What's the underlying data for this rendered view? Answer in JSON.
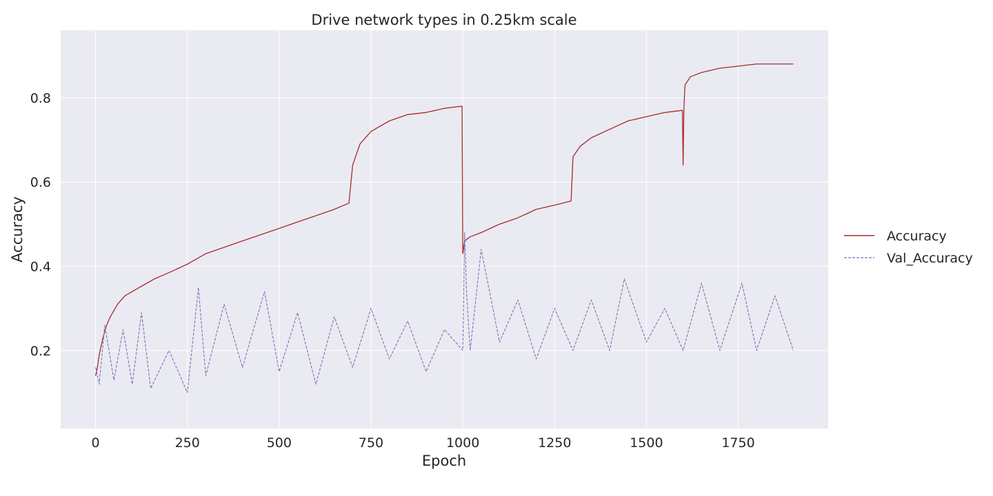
{
  "chart_data": {
    "type": "line",
    "title": "Drive network types in 0.25km scale",
    "xlabel": "Epoch",
    "ylabel": "Accuracy",
    "xlim": [
      -95,
      1995
    ],
    "ylim": [
      0.015,
      0.96
    ],
    "xticks": [
      0,
      250,
      500,
      750,
      1000,
      1250,
      1500,
      1750
    ],
    "yticks": [
      0.2,
      0.4,
      0.6,
      0.8
    ],
    "grid": true,
    "legend_position": "outside-right",
    "background": "#eaeaf2",
    "series": [
      {
        "name": "Accuracy",
        "color": "#a52a2a",
        "style": "solid",
        "x": [
          0,
          5,
          10,
          20,
          30,
          40,
          60,
          80,
          100,
          130,
          160,
          200,
          250,
          300,
          350,
          400,
          450,
          500,
          550,
          600,
          650,
          690,
          700,
          720,
          750,
          800,
          850,
          900,
          950,
          998,
          1000,
          1005,
          1020,
          1050,
          1100,
          1150,
          1200,
          1250,
          1295,
          1300,
          1320,
          1350,
          1400,
          1450,
          1500,
          1550,
          1598,
          1600,
          1602,
          1605,
          1620,
          1650,
          1700,
          1750,
          1800,
          1850,
          1900
        ],
        "y": [
          0.14,
          0.16,
          0.19,
          0.23,
          0.26,
          0.28,
          0.31,
          0.33,
          0.34,
          0.355,
          0.37,
          0.385,
          0.405,
          0.43,
          0.445,
          0.46,
          0.475,
          0.49,
          0.505,
          0.52,
          0.535,
          0.55,
          0.64,
          0.69,
          0.72,
          0.745,
          0.76,
          0.765,
          0.775,
          0.78,
          0.43,
          0.46,
          0.47,
          0.48,
          0.5,
          0.515,
          0.535,
          0.545,
          0.555,
          0.66,
          0.685,
          0.705,
          0.725,
          0.745,
          0.755,
          0.765,
          0.77,
          0.64,
          0.77,
          0.83,
          0.85,
          0.86,
          0.87,
          0.875,
          0.88,
          0.88,
          0.88
        ]
      },
      {
        "name": "Val_Accuracy",
        "color": "#7b71b5",
        "style": "dashed",
        "x": [
          0,
          10,
          25,
          50,
          75,
          100,
          125,
          150,
          200,
          250,
          280,
          300,
          350,
          400,
          460,
          500,
          550,
          600,
          650,
          700,
          750,
          800,
          850,
          900,
          950,
          1000,
          1005,
          1010,
          1020,
          1050,
          1100,
          1150,
          1200,
          1250,
          1300,
          1350,
          1400,
          1440,
          1500,
          1550,
          1600,
          1650,
          1700,
          1760,
          1800,
          1850,
          1900
        ],
        "y": [
          0.16,
          0.12,
          0.26,
          0.13,
          0.25,
          0.12,
          0.29,
          0.11,
          0.2,
          0.1,
          0.35,
          0.14,
          0.31,
          0.16,
          0.34,
          0.15,
          0.29,
          0.12,
          0.28,
          0.16,
          0.3,
          0.18,
          0.27,
          0.15,
          0.25,
          0.2,
          0.48,
          0.34,
          0.2,
          0.44,
          0.22,
          0.32,
          0.18,
          0.3,
          0.2,
          0.32,
          0.2,
          0.37,
          0.22,
          0.3,
          0.2,
          0.36,
          0.2,
          0.36,
          0.2,
          0.33,
          0.2
        ]
      }
    ]
  }
}
